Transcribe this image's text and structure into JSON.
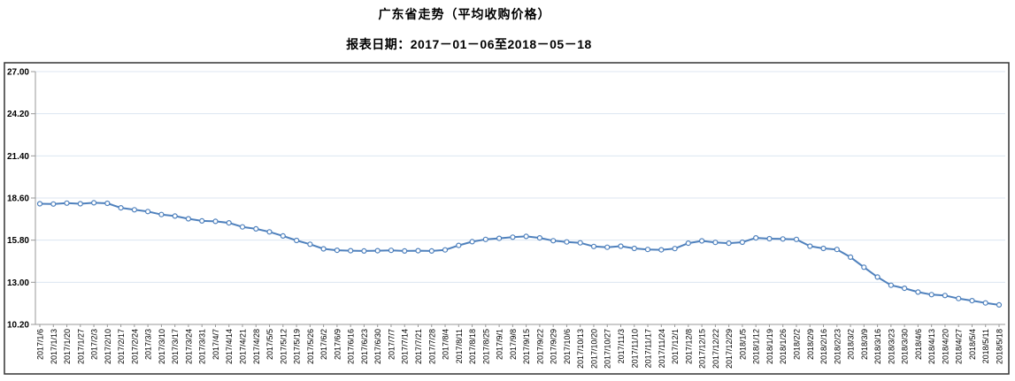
{
  "header": {
    "title": "广东省走势（平均收购价格）",
    "subtitle": "报表日期：2017－01－06至2018－05－18"
  },
  "chart_data": {
    "type": "line",
    "title": "广东省走势（平均收购价格）",
    "subtitle": "报表日期：2017－01－06至2018－05－18",
    "legend": "none",
    "grid": "horizontal",
    "x_label_rotation": -90,
    "ylim": [
      10.2,
      27.0
    ],
    "yticks": [
      27.0,
      24.2,
      21.4,
      18.6,
      15.8,
      13.0,
      10.2
    ],
    "x": [
      "2017/1/6",
      "2017/1/13",
      "2017/1/20",
      "2017/1/27",
      "2017/2/3",
      "2017/2/10",
      "2017/2/17",
      "2017/2/24",
      "2017/3/3",
      "2017/3/10",
      "2017/3/17",
      "2017/3/24",
      "2017/3/31",
      "2017/4/7",
      "2017/4/14",
      "2017/4/21",
      "2017/4/28",
      "2017/5/5",
      "2017/5/12",
      "2017/5/19",
      "2017/5/26",
      "2017/6/2",
      "2017/6/9",
      "2017/6/16",
      "2017/6/23",
      "2017/6/30",
      "2017/7/7",
      "2017/7/14",
      "2017/7/21",
      "2017/7/28",
      "2017/8/4",
      "2017/8/11",
      "2017/8/18",
      "2017/8/25",
      "2017/9/1",
      "2017/9/8",
      "2017/9/15",
      "2017/9/22",
      "2017/9/29",
      "2017/10/6",
      "2017/10/13",
      "2017/10/20",
      "2017/10/27",
      "2017/11/3",
      "2017/11/10",
      "2017/11/17",
      "2017/11/24",
      "2017/12/1",
      "2017/12/8",
      "2017/12/15",
      "2017/12/22",
      "2017/12/29",
      "2018/1/5",
      "2018/1/12",
      "2018/1/19",
      "2018/1/26",
      "2018/2/2",
      "2018/2/9",
      "2018/2/16",
      "2018/2/23",
      "2018/3/2",
      "2018/3/9",
      "2018/3/16",
      "2018/3/23",
      "2018/3/30",
      "2018/4/6",
      "2018/4/13",
      "2018/4/20",
      "2018/4/27",
      "2018/5/4",
      "2018/5/11",
      "2018/5/18"
    ],
    "series": [
      {
        "name": "平均收购价格",
        "values": [
          18.22,
          18.2,
          18.26,
          18.22,
          18.28,
          18.25,
          17.95,
          17.82,
          17.7,
          17.5,
          17.4,
          17.22,
          17.08,
          17.05,
          16.95,
          16.68,
          16.55,
          16.35,
          16.08,
          15.78,
          15.53,
          15.22,
          15.13,
          15.1,
          15.08,
          15.1,
          15.12,
          15.08,
          15.1,
          15.08,
          15.15,
          15.45,
          15.7,
          15.85,
          15.92,
          16.0,
          16.05,
          15.95,
          15.76,
          15.68,
          15.62,
          15.38,
          15.33,
          15.4,
          15.25,
          15.18,
          15.16,
          15.24,
          15.6,
          15.75,
          15.65,
          15.6,
          15.66,
          15.95,
          15.9,
          15.88,
          15.85,
          15.4,
          15.25,
          15.18,
          14.67,
          14.0,
          13.35,
          12.8,
          12.6,
          12.35,
          12.18,
          12.12,
          11.92,
          11.78,
          11.63,
          11.5
        ]
      }
    ],
    "colors": {
      "line": "#4F81BD",
      "marker_fill": "#FFFFFF",
      "grid": "#DCE6F1",
      "axis": "#999999",
      "frame": "#333333",
      "text": "#000000"
    }
  }
}
